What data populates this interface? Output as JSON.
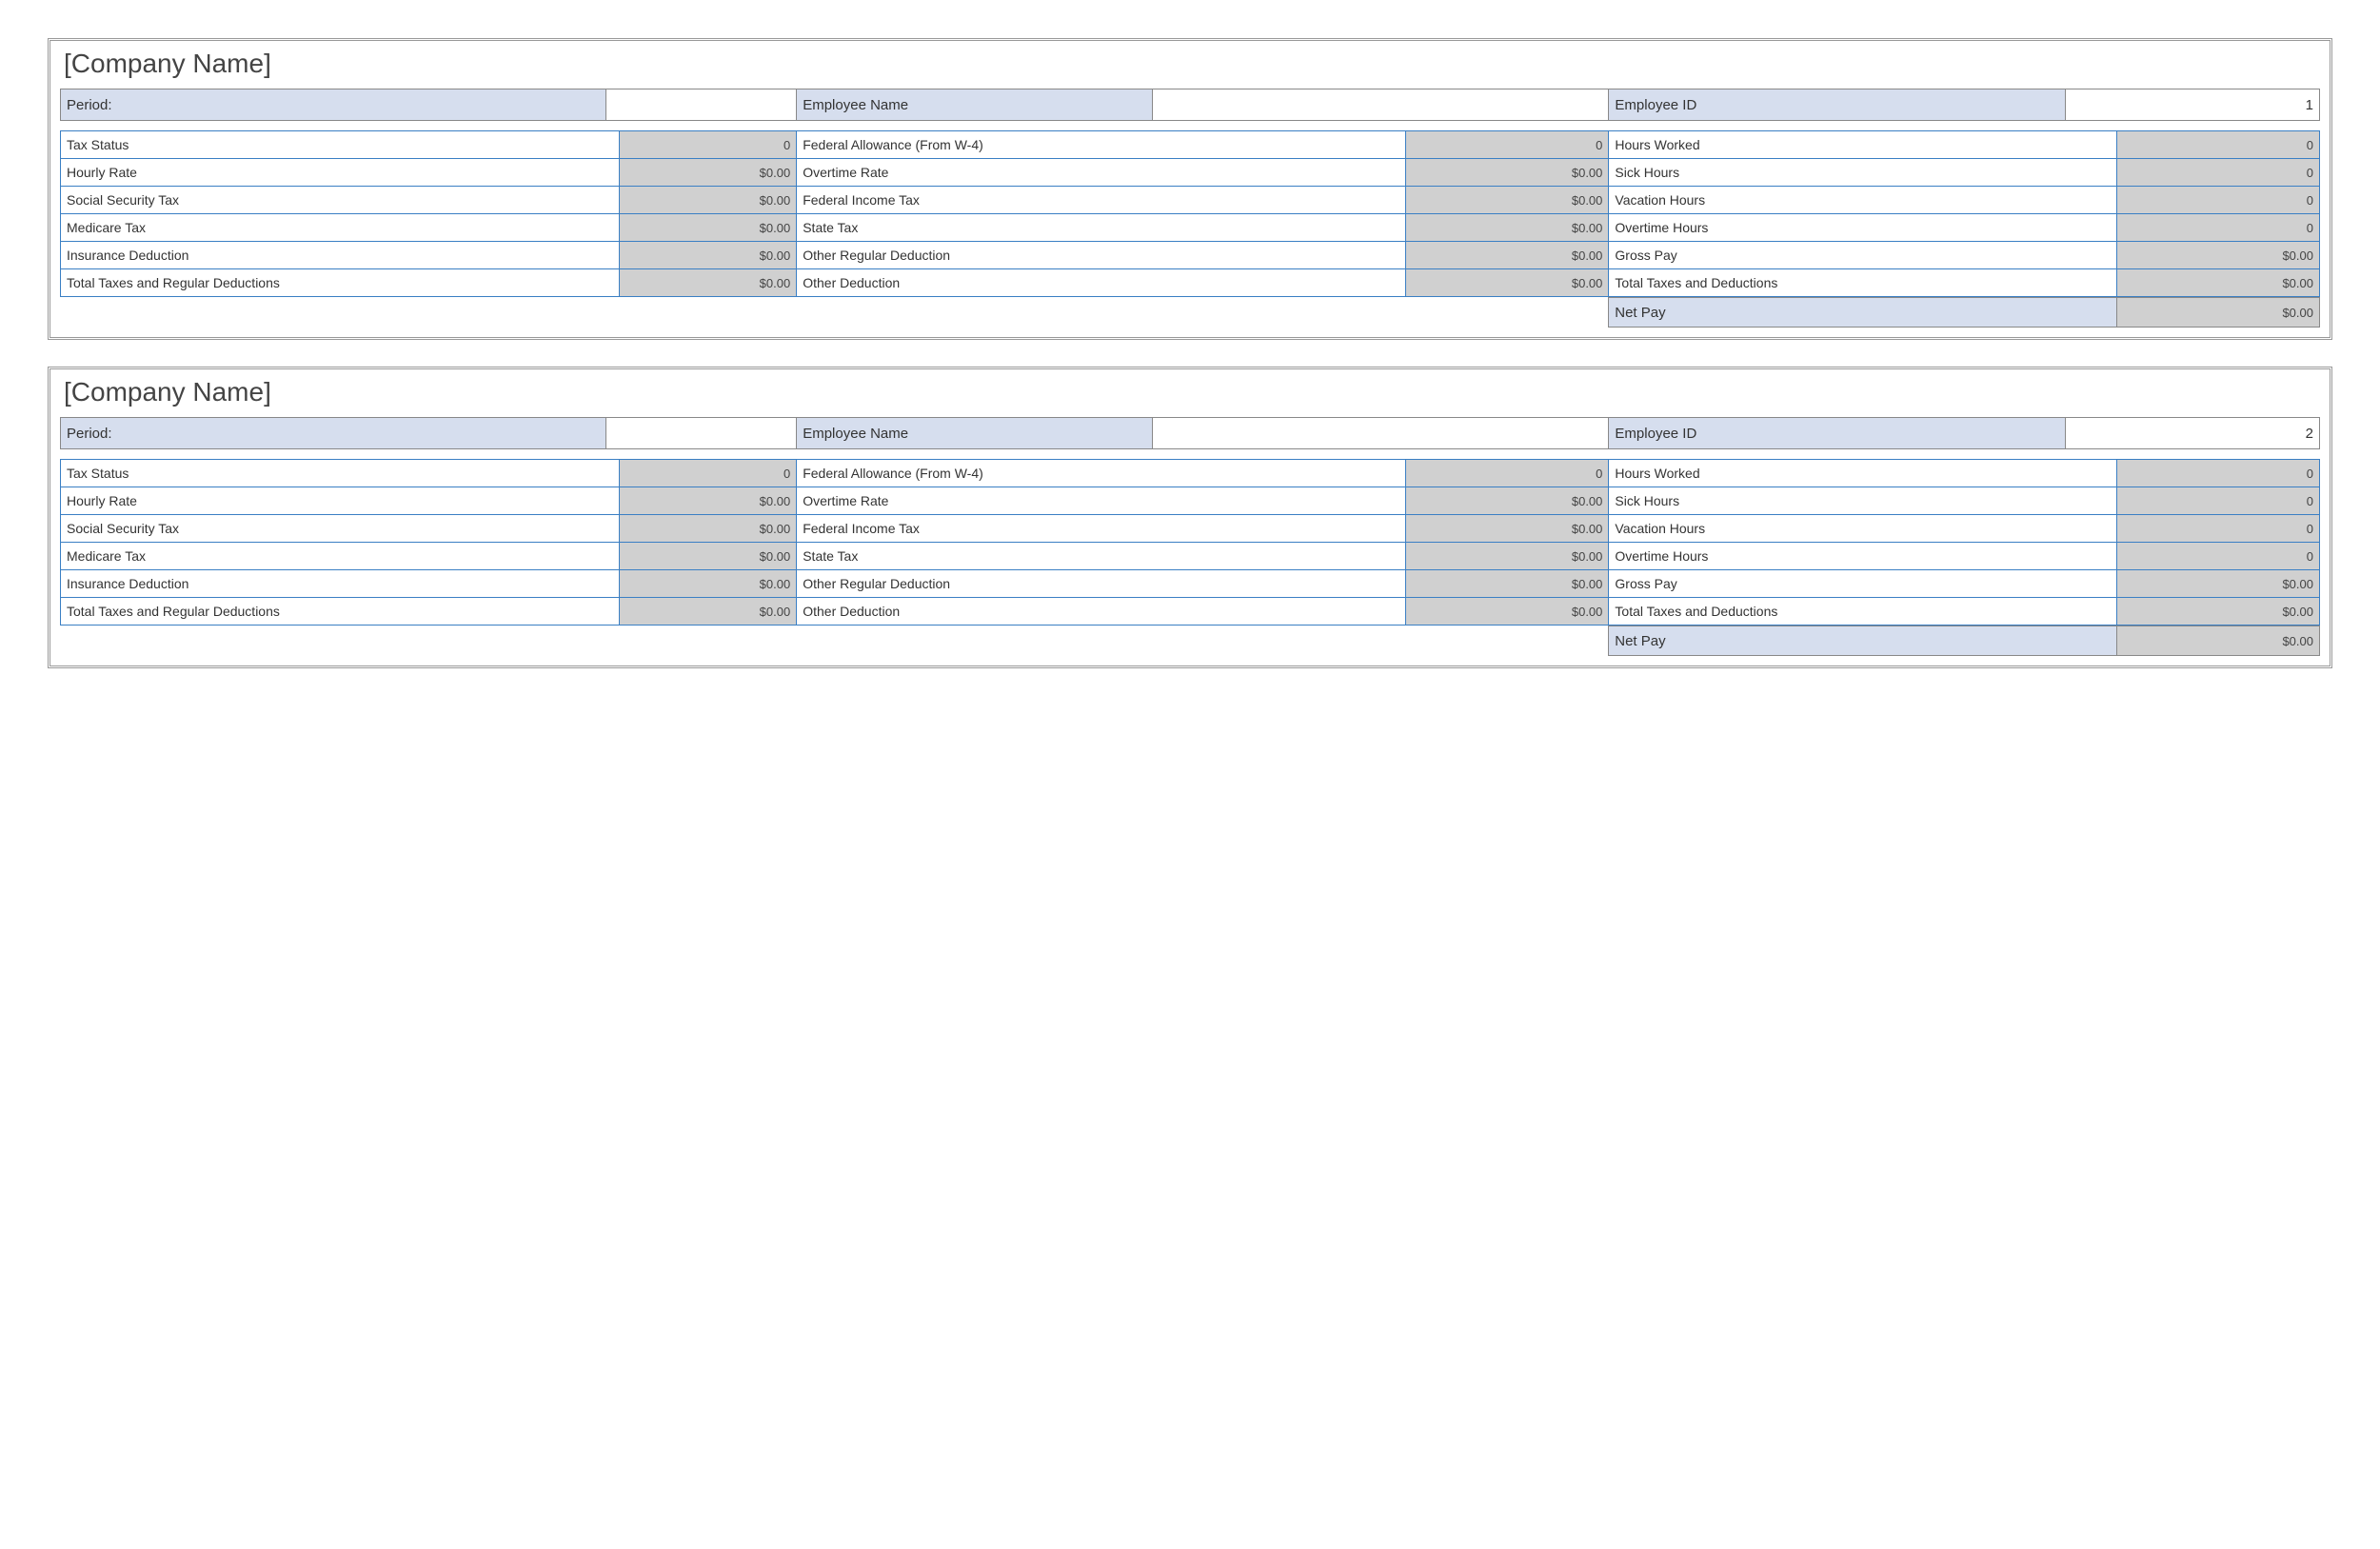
{
  "colors": {
    "page_bg": "#ffffff",
    "double_border": "#999999",
    "header_cell_bg": "#d6deee",
    "header_cell_border": "#888888",
    "detail_label_bg": "#ffffff",
    "detail_val_bg": "#d0d0d0",
    "detail_border": "#3a7fc4",
    "text": "#333333",
    "val_text": "#444444"
  },
  "stubs": [
    {
      "company": "[Company Name]",
      "header": {
        "period_label": "Period:",
        "period_value": "",
        "employee_name_label": "Employee Name",
        "employee_name_value": "",
        "employee_id_label": "Employee ID",
        "employee_id_value": "1"
      },
      "rows": [
        {
          "l1": "Tax Status",
          "v1": "0",
          "l2": "Federal Allowance (From W-4)",
          "v2": "0",
          "l3": "Hours Worked",
          "v3": "0"
        },
        {
          "l1": "Hourly Rate",
          "v1": "$0.00",
          "l2": "Overtime Rate",
          "v2": "$0.00",
          "l3": "Sick Hours",
          "v3": "0"
        },
        {
          "l1": "Social Security Tax",
          "v1": "$0.00",
          "l2": "Federal Income Tax",
          "v2": "$0.00",
          "l3": "Vacation Hours",
          "v3": "0"
        },
        {
          "l1": "Medicare Tax",
          "v1": "$0.00",
          "l2": "State Tax",
          "v2": "$0.00",
          "l3": "Overtime Hours",
          "v3": "0"
        },
        {
          "l1": "Insurance Deduction",
          "v1": "$0.00",
          "l2": "Other Regular Deduction",
          "v2": "$0.00",
          "l3": "Gross Pay",
          "v3": "$0.00"
        },
        {
          "l1": "Total Taxes and Regular Deductions",
          "v1": "$0.00",
          "l2": "Other Deduction",
          "v2": "$0.00",
          "l3": "Total Taxes and Deductions",
          "v3": "$0.00"
        }
      ],
      "netpay": {
        "label": "Net Pay",
        "value": "$0.00"
      }
    },
    {
      "company": "[Company Name]",
      "header": {
        "period_label": "Period:",
        "period_value": "",
        "employee_name_label": "Employee Name",
        "employee_name_value": "",
        "employee_id_label": "Employee ID",
        "employee_id_value": "2"
      },
      "rows": [
        {
          "l1": "Tax Status",
          "v1": "0",
          "l2": "Federal Allowance (From W-4)",
          "v2": "0",
          "l3": "Hours Worked",
          "v3": "0"
        },
        {
          "l1": "Hourly Rate",
          "v1": "$0.00",
          "l2": "Overtime Rate",
          "v2": "$0.00",
          "l3": "Sick Hours",
          "v3": "0"
        },
        {
          "l1": "Social Security Tax",
          "v1": "$0.00",
          "l2": "Federal Income Tax",
          "v2": "$0.00",
          "l3": "Vacation Hours",
          "v3": "0"
        },
        {
          "l1": "Medicare Tax",
          "v1": "$0.00",
          "l2": "State Tax",
          "v2": "$0.00",
          "l3": "Overtime Hours",
          "v3": "0"
        },
        {
          "l1": "Insurance Deduction",
          "v1": "$0.00",
          "l2": "Other Regular Deduction",
          "v2": "$0.00",
          "l3": "Gross Pay",
          "v3": "$0.00"
        },
        {
          "l1": "Total Taxes and Regular Deductions",
          "v1": "$0.00",
          "l2": "Other Deduction",
          "v2": "$0.00",
          "l3": "Total Taxes and Deductions",
          "v3": "$0.00"
        }
      ],
      "netpay": {
        "label": "Net Pay",
        "value": "$0.00"
      }
    }
  ]
}
